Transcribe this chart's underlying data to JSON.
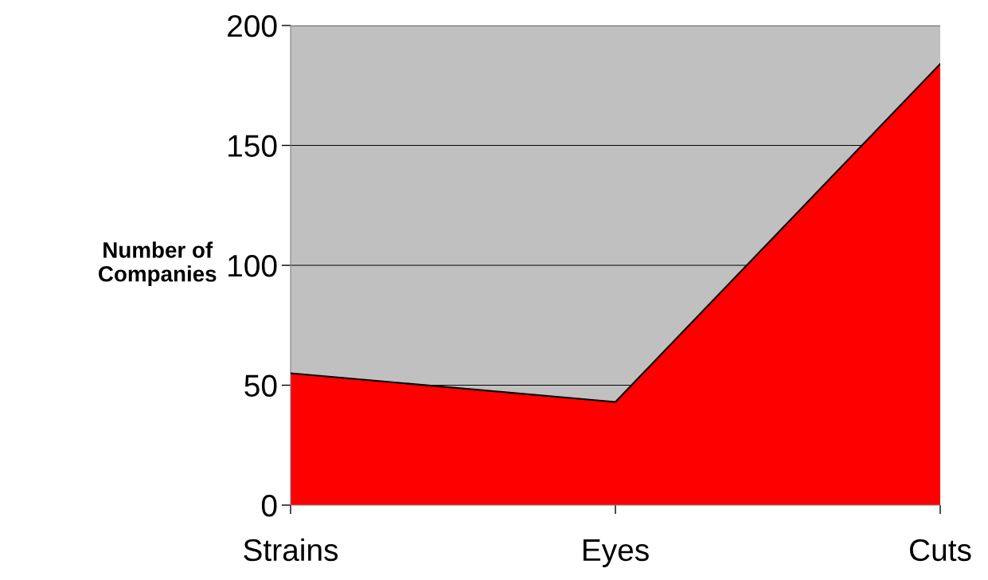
{
  "chart_data": {
    "type": "area",
    "ylabel": "Number of\nCompanies",
    "categories": [
      "Strains",
      "Eyes",
      "Cuts"
    ],
    "series": [
      {
        "color": "#ff0000",
        "values": [
          55,
          43,
          184
        ]
      }
    ],
    "ylim": [
      0,
      200
    ],
    "yticks": [
      0,
      50,
      100,
      150,
      200
    ],
    "grid": "y",
    "legend": false
  }
}
